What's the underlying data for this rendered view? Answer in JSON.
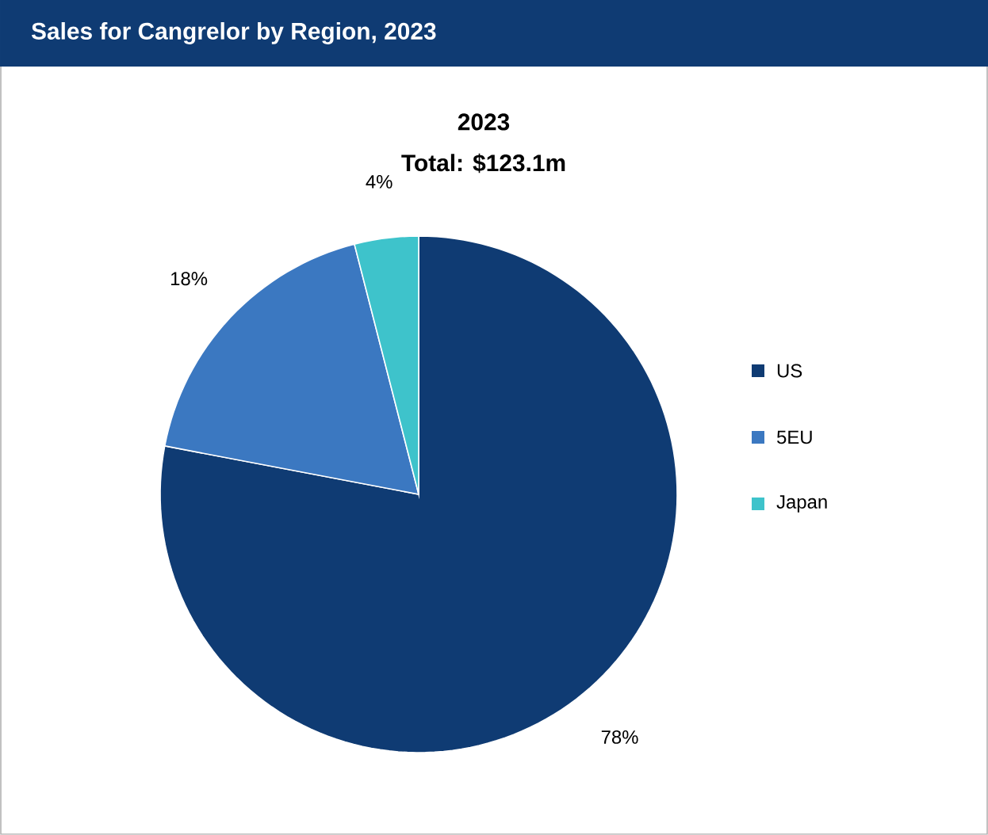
{
  "chart_data": {
    "type": "pie",
    "title": "Sales for Cangrelor by Region, 2023",
    "subtitle": "2023",
    "annotations": [
      "Total: $123.1m"
    ],
    "categories": [
      "US",
      "5EU",
      "Japan"
    ],
    "values": [
      78,
      18,
      4
    ],
    "value_labels": [
      "78%",
      "18%",
      "4%"
    ],
    "colors": [
      "#0f3b73",
      "#3b78c1",
      "#3ec3cb"
    ],
    "legend": "right"
  }
}
